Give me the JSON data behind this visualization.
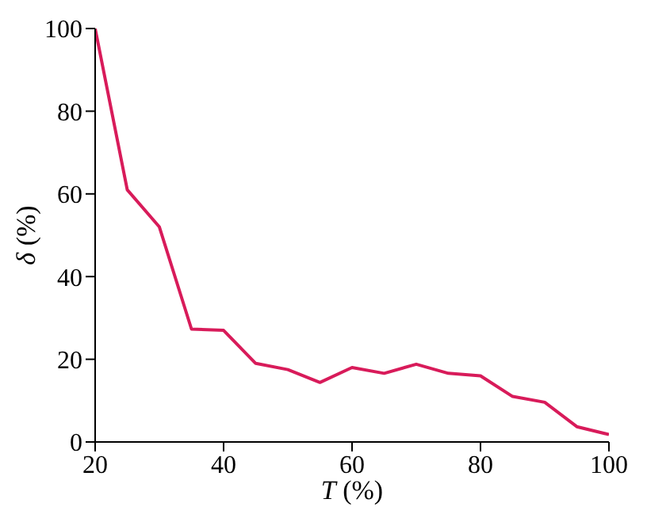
{
  "chart_data": {
    "type": "line",
    "xlabel": "T (%)",
    "ylabel": "δ (%)",
    "x": [
      20,
      25,
      30,
      35,
      40,
      45,
      50,
      55,
      60,
      65,
      70,
      75,
      80,
      85,
      90,
      95,
      100
    ],
    "series": [
      {
        "color": "#d81b5a",
        "values": [
          100,
          61,
          52,
          27.3,
          27,
          19,
          17.5,
          14.4,
          18,
          16.6,
          18.8,
          16.6,
          16,
          11,
          9.6,
          3.7,
          1.8
        ]
      }
    ],
    "xlim": [
      20,
      100
    ],
    "xticks": [
      20,
      40,
      60,
      80,
      100
    ],
    "ylim": [
      0,
      100
    ],
    "yticks": [
      0,
      20,
      40,
      60,
      80,
      100
    ],
    "grid": false,
    "legend": false,
    "marker": "none",
    "line_style": "solid"
  }
}
